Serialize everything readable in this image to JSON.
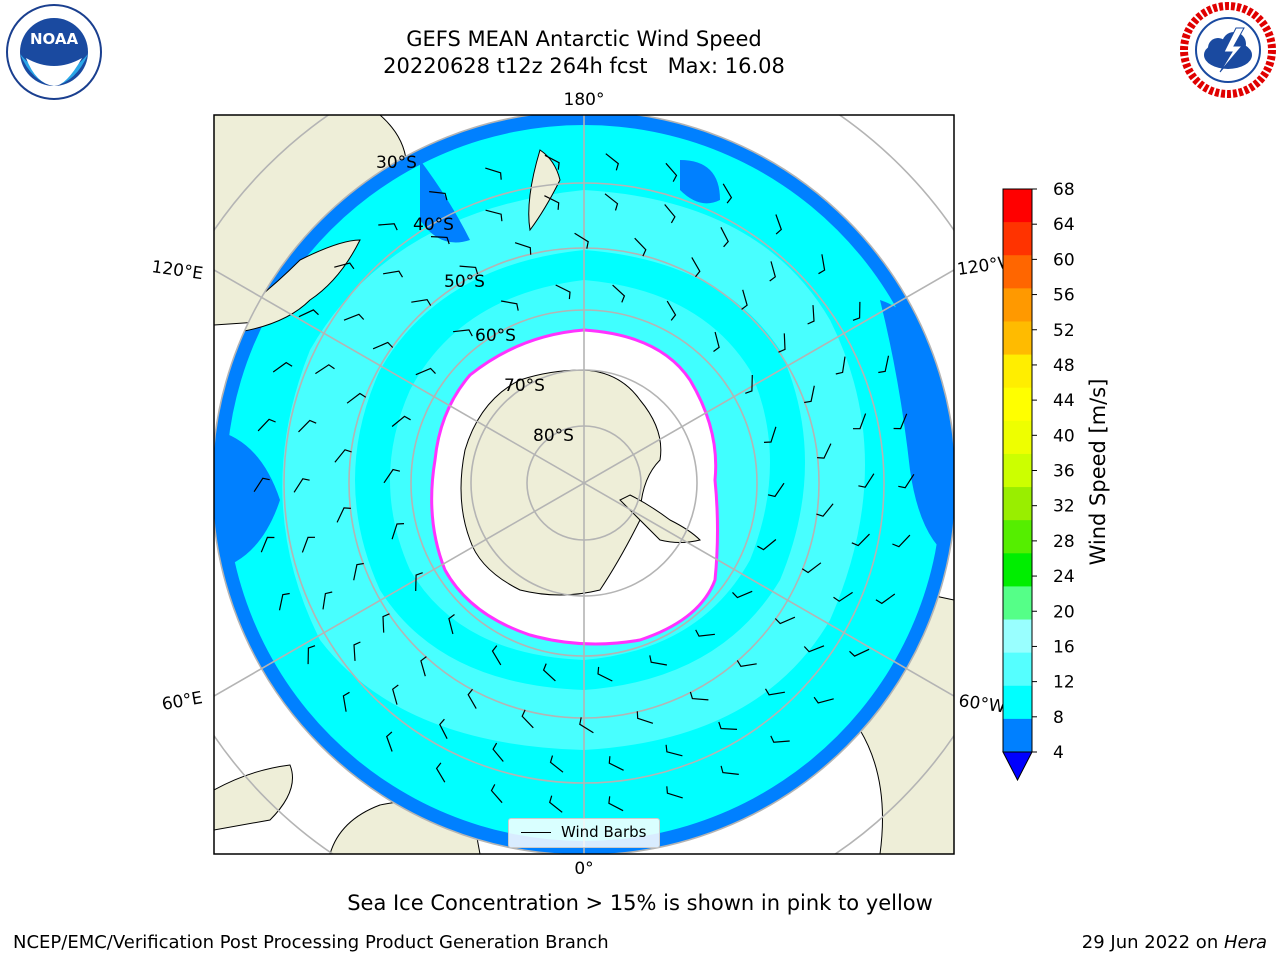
{
  "header": {
    "title_line1": "GEFS MEAN Antarctic Wind Speed",
    "title_line2": "20220628 t12z 264h fcst   Max: 16.08"
  },
  "logos": {
    "left": "noaa-logo",
    "left_text": "NOAA",
    "right": "nws-logo"
  },
  "map": {
    "projection": "south-polar-stereographic",
    "longitude_labels": {
      "top": "180°",
      "bottom": "0°",
      "upper_left": "120°E",
      "upper_right": "120°W",
      "lower_left": "60°E",
      "lower_right": "60°W"
    },
    "latitude_labels": [
      "30°S",
      "40°S",
      "50°S",
      "60°S",
      "70°S",
      "80°S"
    ],
    "legend": {
      "label": "Wind Barbs"
    },
    "colors": {
      "land": "#eeeed8",
      "ice": "#ffffff",
      "wind_4_8": "#0080ff",
      "wind_8_12": "#00ffff",
      "wind_12_16": "#55ffff",
      "grid": "#b4b4b4",
      "ice_edge": "#ff33ff"
    }
  },
  "colorbar": {
    "label": "Wind Speed [m/s]",
    "ticks": [
      "68",
      "64",
      "60",
      "56",
      "52",
      "48",
      "44",
      "40",
      "36",
      "32",
      "28",
      "24",
      "20",
      "16",
      "12",
      "8",
      "4"
    ],
    "colors": [
      "#ff0000",
      "#ff3300",
      "#ff6600",
      "#ff9900",
      "#ffbb00",
      "#ffee00",
      "#ffff00",
      "#eeff00",
      "#ccff00",
      "#99ee00",
      "#55ee00",
      "#00ee00",
      "#55ff88",
      "#99ffff",
      "#55ffff",
      "#00ffff",
      "#0080ff"
    ],
    "extend_color": "#0000ff"
  },
  "subtitle": "Sea Ice Concentration > 15% is shown in pink to yellow",
  "footer": {
    "left": "NCEP/EMC/Verification Post Processing Product Generation Branch",
    "right_prefix": "29 Jun 2022 on ",
    "right_host": "Hera"
  }
}
